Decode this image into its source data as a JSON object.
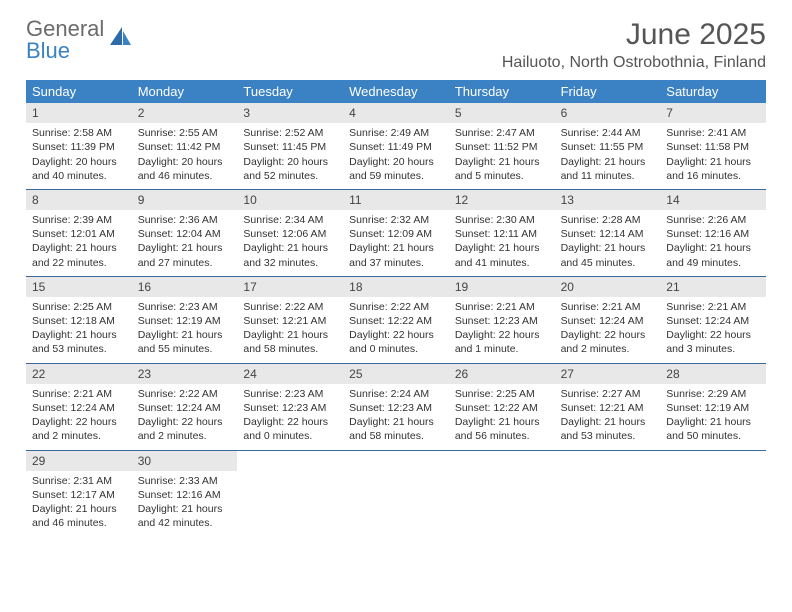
{
  "logo": {
    "text1": "General",
    "text2": "Blue"
  },
  "title": "June 2025",
  "location": "Hailuoto, North Ostrobothnia, Finland",
  "weekdays": [
    "Sunday",
    "Monday",
    "Tuesday",
    "Wednesday",
    "Thursday",
    "Friday",
    "Saturday"
  ],
  "colors": {
    "header_bg": "#3b82c4",
    "header_text": "#ffffff",
    "daynum_bg": "#e8e8e8",
    "week_border": "#3b6a9a",
    "text": "#333333"
  },
  "typography": {
    "title_fontsize": 30,
    "location_fontsize": 16,
    "weekday_fontsize": 13,
    "cell_fontsize": 10.5
  },
  "weeks": [
    [
      {
        "day": "1",
        "sunrise": "Sunrise: 2:58 AM",
        "sunset": "Sunset: 11:39 PM",
        "daylight1": "Daylight: 20 hours",
        "daylight2": "and 40 minutes."
      },
      {
        "day": "2",
        "sunrise": "Sunrise: 2:55 AM",
        "sunset": "Sunset: 11:42 PM",
        "daylight1": "Daylight: 20 hours",
        "daylight2": "and 46 minutes."
      },
      {
        "day": "3",
        "sunrise": "Sunrise: 2:52 AM",
        "sunset": "Sunset: 11:45 PM",
        "daylight1": "Daylight: 20 hours",
        "daylight2": "and 52 minutes."
      },
      {
        "day": "4",
        "sunrise": "Sunrise: 2:49 AM",
        "sunset": "Sunset: 11:49 PM",
        "daylight1": "Daylight: 20 hours",
        "daylight2": "and 59 minutes."
      },
      {
        "day": "5",
        "sunrise": "Sunrise: 2:47 AM",
        "sunset": "Sunset: 11:52 PM",
        "daylight1": "Daylight: 21 hours",
        "daylight2": "and 5 minutes."
      },
      {
        "day": "6",
        "sunrise": "Sunrise: 2:44 AM",
        "sunset": "Sunset: 11:55 PM",
        "daylight1": "Daylight: 21 hours",
        "daylight2": "and 11 minutes."
      },
      {
        "day": "7",
        "sunrise": "Sunrise: 2:41 AM",
        "sunset": "Sunset: 11:58 PM",
        "daylight1": "Daylight: 21 hours",
        "daylight2": "and 16 minutes."
      }
    ],
    [
      {
        "day": "8",
        "sunrise": "Sunrise: 2:39 AM",
        "sunset": "Sunset: 12:01 AM",
        "daylight1": "Daylight: 21 hours",
        "daylight2": "and 22 minutes."
      },
      {
        "day": "9",
        "sunrise": "Sunrise: 2:36 AM",
        "sunset": "Sunset: 12:04 AM",
        "daylight1": "Daylight: 21 hours",
        "daylight2": "and 27 minutes."
      },
      {
        "day": "10",
        "sunrise": "Sunrise: 2:34 AM",
        "sunset": "Sunset: 12:06 AM",
        "daylight1": "Daylight: 21 hours",
        "daylight2": "and 32 minutes."
      },
      {
        "day": "11",
        "sunrise": "Sunrise: 2:32 AM",
        "sunset": "Sunset: 12:09 AM",
        "daylight1": "Daylight: 21 hours",
        "daylight2": "and 37 minutes."
      },
      {
        "day": "12",
        "sunrise": "Sunrise: 2:30 AM",
        "sunset": "Sunset: 12:11 AM",
        "daylight1": "Daylight: 21 hours",
        "daylight2": "and 41 minutes."
      },
      {
        "day": "13",
        "sunrise": "Sunrise: 2:28 AM",
        "sunset": "Sunset: 12:14 AM",
        "daylight1": "Daylight: 21 hours",
        "daylight2": "and 45 minutes."
      },
      {
        "day": "14",
        "sunrise": "Sunrise: 2:26 AM",
        "sunset": "Sunset: 12:16 AM",
        "daylight1": "Daylight: 21 hours",
        "daylight2": "and 49 minutes."
      }
    ],
    [
      {
        "day": "15",
        "sunrise": "Sunrise: 2:25 AM",
        "sunset": "Sunset: 12:18 AM",
        "daylight1": "Daylight: 21 hours",
        "daylight2": "and 53 minutes."
      },
      {
        "day": "16",
        "sunrise": "Sunrise: 2:23 AM",
        "sunset": "Sunset: 12:19 AM",
        "daylight1": "Daylight: 21 hours",
        "daylight2": "and 55 minutes."
      },
      {
        "day": "17",
        "sunrise": "Sunrise: 2:22 AM",
        "sunset": "Sunset: 12:21 AM",
        "daylight1": "Daylight: 21 hours",
        "daylight2": "and 58 minutes."
      },
      {
        "day": "18",
        "sunrise": "Sunrise: 2:22 AM",
        "sunset": "Sunset: 12:22 AM",
        "daylight1": "Daylight: 22 hours",
        "daylight2": "and 0 minutes."
      },
      {
        "day": "19",
        "sunrise": "Sunrise: 2:21 AM",
        "sunset": "Sunset: 12:23 AM",
        "daylight1": "Daylight: 22 hours",
        "daylight2": "and 1 minute."
      },
      {
        "day": "20",
        "sunrise": "Sunrise: 2:21 AM",
        "sunset": "Sunset: 12:24 AM",
        "daylight1": "Daylight: 22 hours",
        "daylight2": "and 2 minutes."
      },
      {
        "day": "21",
        "sunrise": "Sunrise: 2:21 AM",
        "sunset": "Sunset: 12:24 AM",
        "daylight1": "Daylight: 22 hours",
        "daylight2": "and 3 minutes."
      }
    ],
    [
      {
        "day": "22",
        "sunrise": "Sunrise: 2:21 AM",
        "sunset": "Sunset: 12:24 AM",
        "daylight1": "Daylight: 22 hours",
        "daylight2": "and 2 minutes."
      },
      {
        "day": "23",
        "sunrise": "Sunrise: 2:22 AM",
        "sunset": "Sunset: 12:24 AM",
        "daylight1": "Daylight: 22 hours",
        "daylight2": "and 2 minutes."
      },
      {
        "day": "24",
        "sunrise": "Sunrise: 2:23 AM",
        "sunset": "Sunset: 12:23 AM",
        "daylight1": "Daylight: 22 hours",
        "daylight2": "and 0 minutes."
      },
      {
        "day": "25",
        "sunrise": "Sunrise: 2:24 AM",
        "sunset": "Sunset: 12:23 AM",
        "daylight1": "Daylight: 21 hours",
        "daylight2": "and 58 minutes."
      },
      {
        "day": "26",
        "sunrise": "Sunrise: 2:25 AM",
        "sunset": "Sunset: 12:22 AM",
        "daylight1": "Daylight: 21 hours",
        "daylight2": "and 56 minutes."
      },
      {
        "day": "27",
        "sunrise": "Sunrise: 2:27 AM",
        "sunset": "Sunset: 12:21 AM",
        "daylight1": "Daylight: 21 hours",
        "daylight2": "and 53 minutes."
      },
      {
        "day": "28",
        "sunrise": "Sunrise: 2:29 AM",
        "sunset": "Sunset: 12:19 AM",
        "daylight1": "Daylight: 21 hours",
        "daylight2": "and 50 minutes."
      }
    ],
    [
      {
        "day": "29",
        "sunrise": "Sunrise: 2:31 AM",
        "sunset": "Sunset: 12:17 AM",
        "daylight1": "Daylight: 21 hours",
        "daylight2": "and 46 minutes."
      },
      {
        "day": "30",
        "sunrise": "Sunrise: 2:33 AM",
        "sunset": "Sunset: 12:16 AM",
        "daylight1": "Daylight: 21 hours",
        "daylight2": "and 42 minutes."
      },
      null,
      null,
      null,
      null,
      null
    ]
  ]
}
